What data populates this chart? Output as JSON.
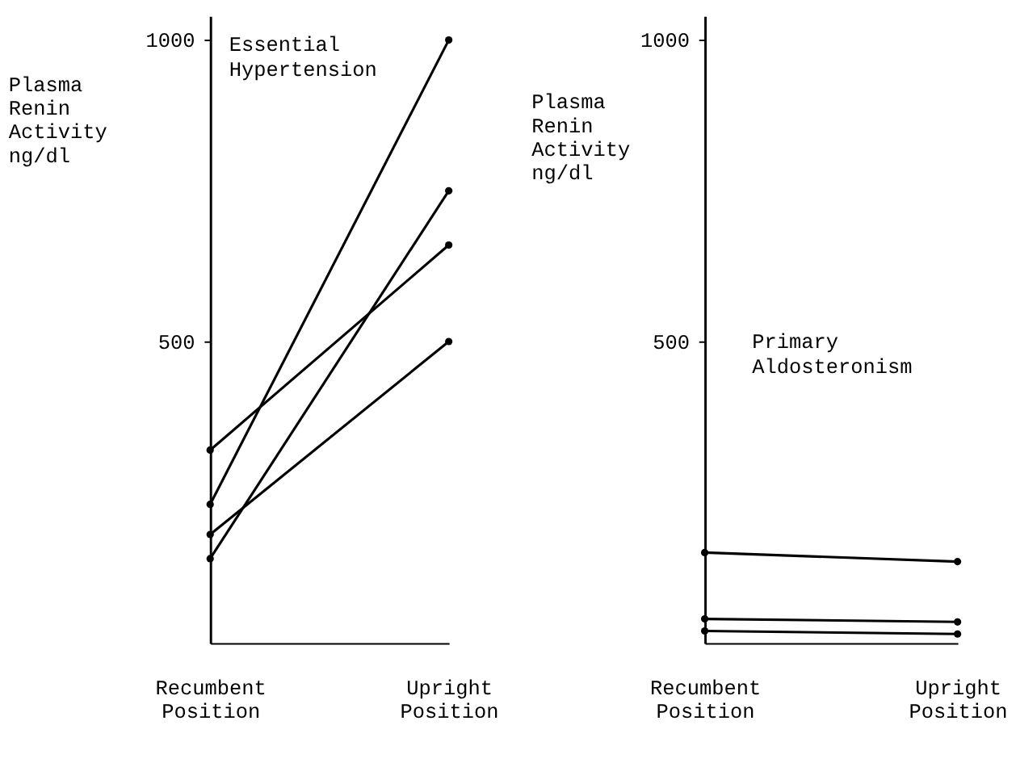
{
  "chart_data": [
    {
      "type": "line",
      "annotations": [
        "Essential Hypertension"
      ],
      "ylabel": "Plasma Renin Activity ng/dl",
      "categories": [
        "Recumbent Position",
        "Upright Position"
      ],
      "ylim": [
        0,
        1040
      ],
      "yticks": [
        500,
        1000
      ],
      "grid": false,
      "marker": "circle",
      "line_style": "solid",
      "series": [
        {
          "color": "#000000",
          "values": [
            230,
            1000
          ]
        },
        {
          "color": "#000000",
          "values": [
            140,
            750
          ]
        },
        {
          "color": "#000000",
          "values": [
            320,
            660
          ]
        },
        {
          "color": "#000000",
          "values": [
            180,
            500
          ]
        }
      ]
    },
    {
      "type": "line",
      "annotations": [
        "Primary Aldosteronism"
      ],
      "ylabel": "Plasma Renin Activity ng/dl",
      "categories": [
        "Recumbent Position",
        "Upright Position"
      ],
      "ylim": [
        0,
        1040
      ],
      "yticks": [
        500,
        1000
      ],
      "grid": false,
      "marker": "circle",
      "line_style": "solid",
      "series": [
        {
          "color": "#000000",
          "values": [
            150,
            135
          ]
        },
        {
          "color": "#000000",
          "values": [
            40,
            35
          ]
        },
        {
          "color": "#000000",
          "values": [
            20,
            15
          ]
        }
      ]
    }
  ]
}
